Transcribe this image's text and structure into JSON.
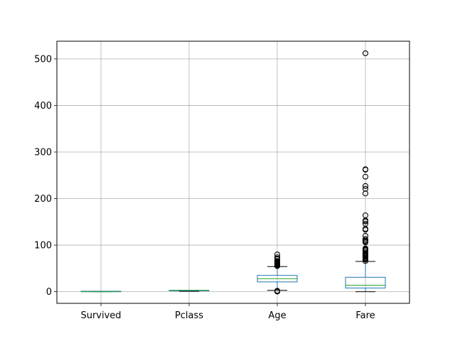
{
  "chart_data": {
    "type": "box",
    "title": "",
    "xlabel": "",
    "ylabel": "",
    "categories": [
      "Survived",
      "Pclass",
      "Age",
      "Fare"
    ],
    "ylim": [
      -25,
      538
    ],
    "yticks": [
      0,
      100,
      200,
      300,
      400,
      500
    ],
    "ytick_labels": [
      "0",
      "100",
      "200",
      "300",
      "400",
      "500"
    ],
    "grid": true,
    "box_color": "#1f77b4",
    "median_color": "#2ca02c",
    "boxes": [
      {
        "name": "Survived",
        "whisker_low": 0,
        "q1": 0,
        "median": 0,
        "q3": 1,
        "whisker_high": 1,
        "outliers": []
      },
      {
        "name": "Pclass",
        "whisker_low": 1,
        "q1": 2,
        "median": 3,
        "q3": 3,
        "whisker_high": 3,
        "outliers": []
      },
      {
        "name": "Age",
        "whisker_low": 3,
        "q1": 21,
        "median": 28,
        "q3": 35,
        "whisker_high": 54,
        "outliers": [
          0.4,
          0.7,
          0.9,
          1,
          2,
          55,
          56,
          57,
          58,
          59,
          60,
          61,
          62,
          63,
          64,
          65,
          66,
          70,
          71,
          74,
          80
        ]
      },
      {
        "name": "Fare",
        "whisker_low": 0,
        "q1": 8,
        "median": 14,
        "q3": 31,
        "whisker_high": 65,
        "outliers": [
          66,
          69,
          71,
          73,
          75,
          77,
          78,
          79,
          80,
          82,
          83,
          86,
          89,
          90,
          91,
          93,
          106,
          108,
          110,
          113,
          120,
          133,
          135,
          146,
          151,
          153,
          164,
          211,
          221,
          227,
          247,
          262,
          263,
          512
        ]
      }
    ]
  }
}
